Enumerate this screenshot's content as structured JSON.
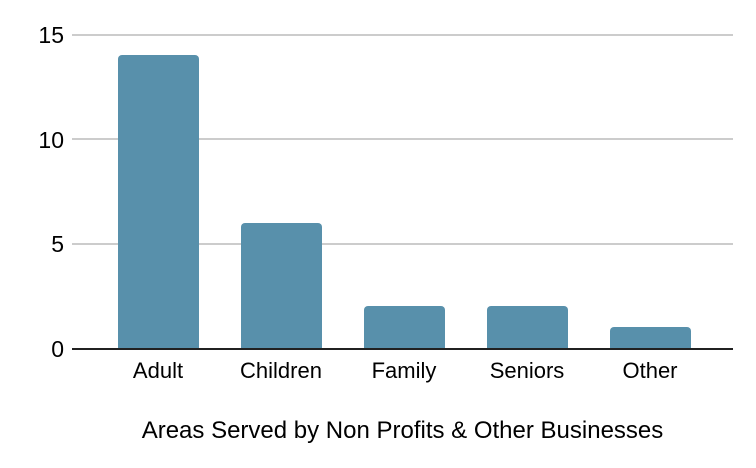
{
  "chart_data": {
    "type": "bar",
    "categories": [
      "Adult",
      "Children",
      "Family",
      "Seniors",
      "Other"
    ],
    "values": [
      14,
      6,
      2,
      2,
      1
    ],
    "title": "Areas Served by Non Profits & Other Businesses",
    "xlabel": "",
    "ylabel": "",
    "ylim": [
      0,
      15
    ],
    "yticks": [
      0,
      5,
      10,
      15
    ],
    "grid": true,
    "legend": false,
    "bar_color": "#5890ab",
    "grid_color": "#cccccc",
    "axis_color": "#212121",
    "text_color": "#000000",
    "background_color": "#ffffff"
  }
}
